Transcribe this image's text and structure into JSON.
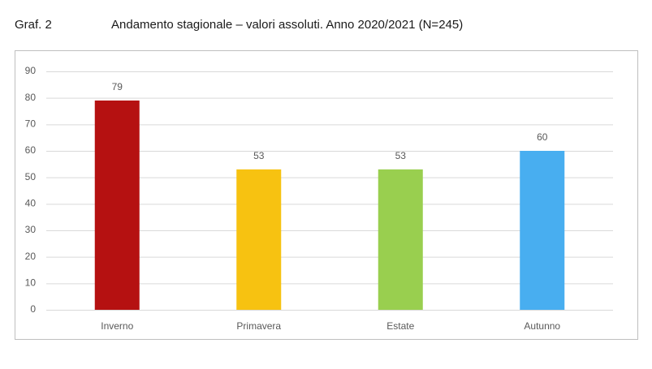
{
  "chart_data": {
    "type": "bar",
    "figure_label": "Graf. 2",
    "title": "Andamento stagionale – valori assoluti. Anno 2020/2021 (N=245)",
    "categories": [
      "Inverno",
      "Primavera",
      "Estate",
      "Autunno"
    ],
    "values": [
      79,
      53,
      53,
      60
    ],
    "colors": [
      "#b51111",
      "#f7c211",
      "#99cf4f",
      "#48aef0"
    ],
    "ylim": [
      0,
      90
    ],
    "yticks": [
      0,
      10,
      20,
      30,
      40,
      50,
      60,
      70,
      80,
      90
    ],
    "grid": true
  }
}
